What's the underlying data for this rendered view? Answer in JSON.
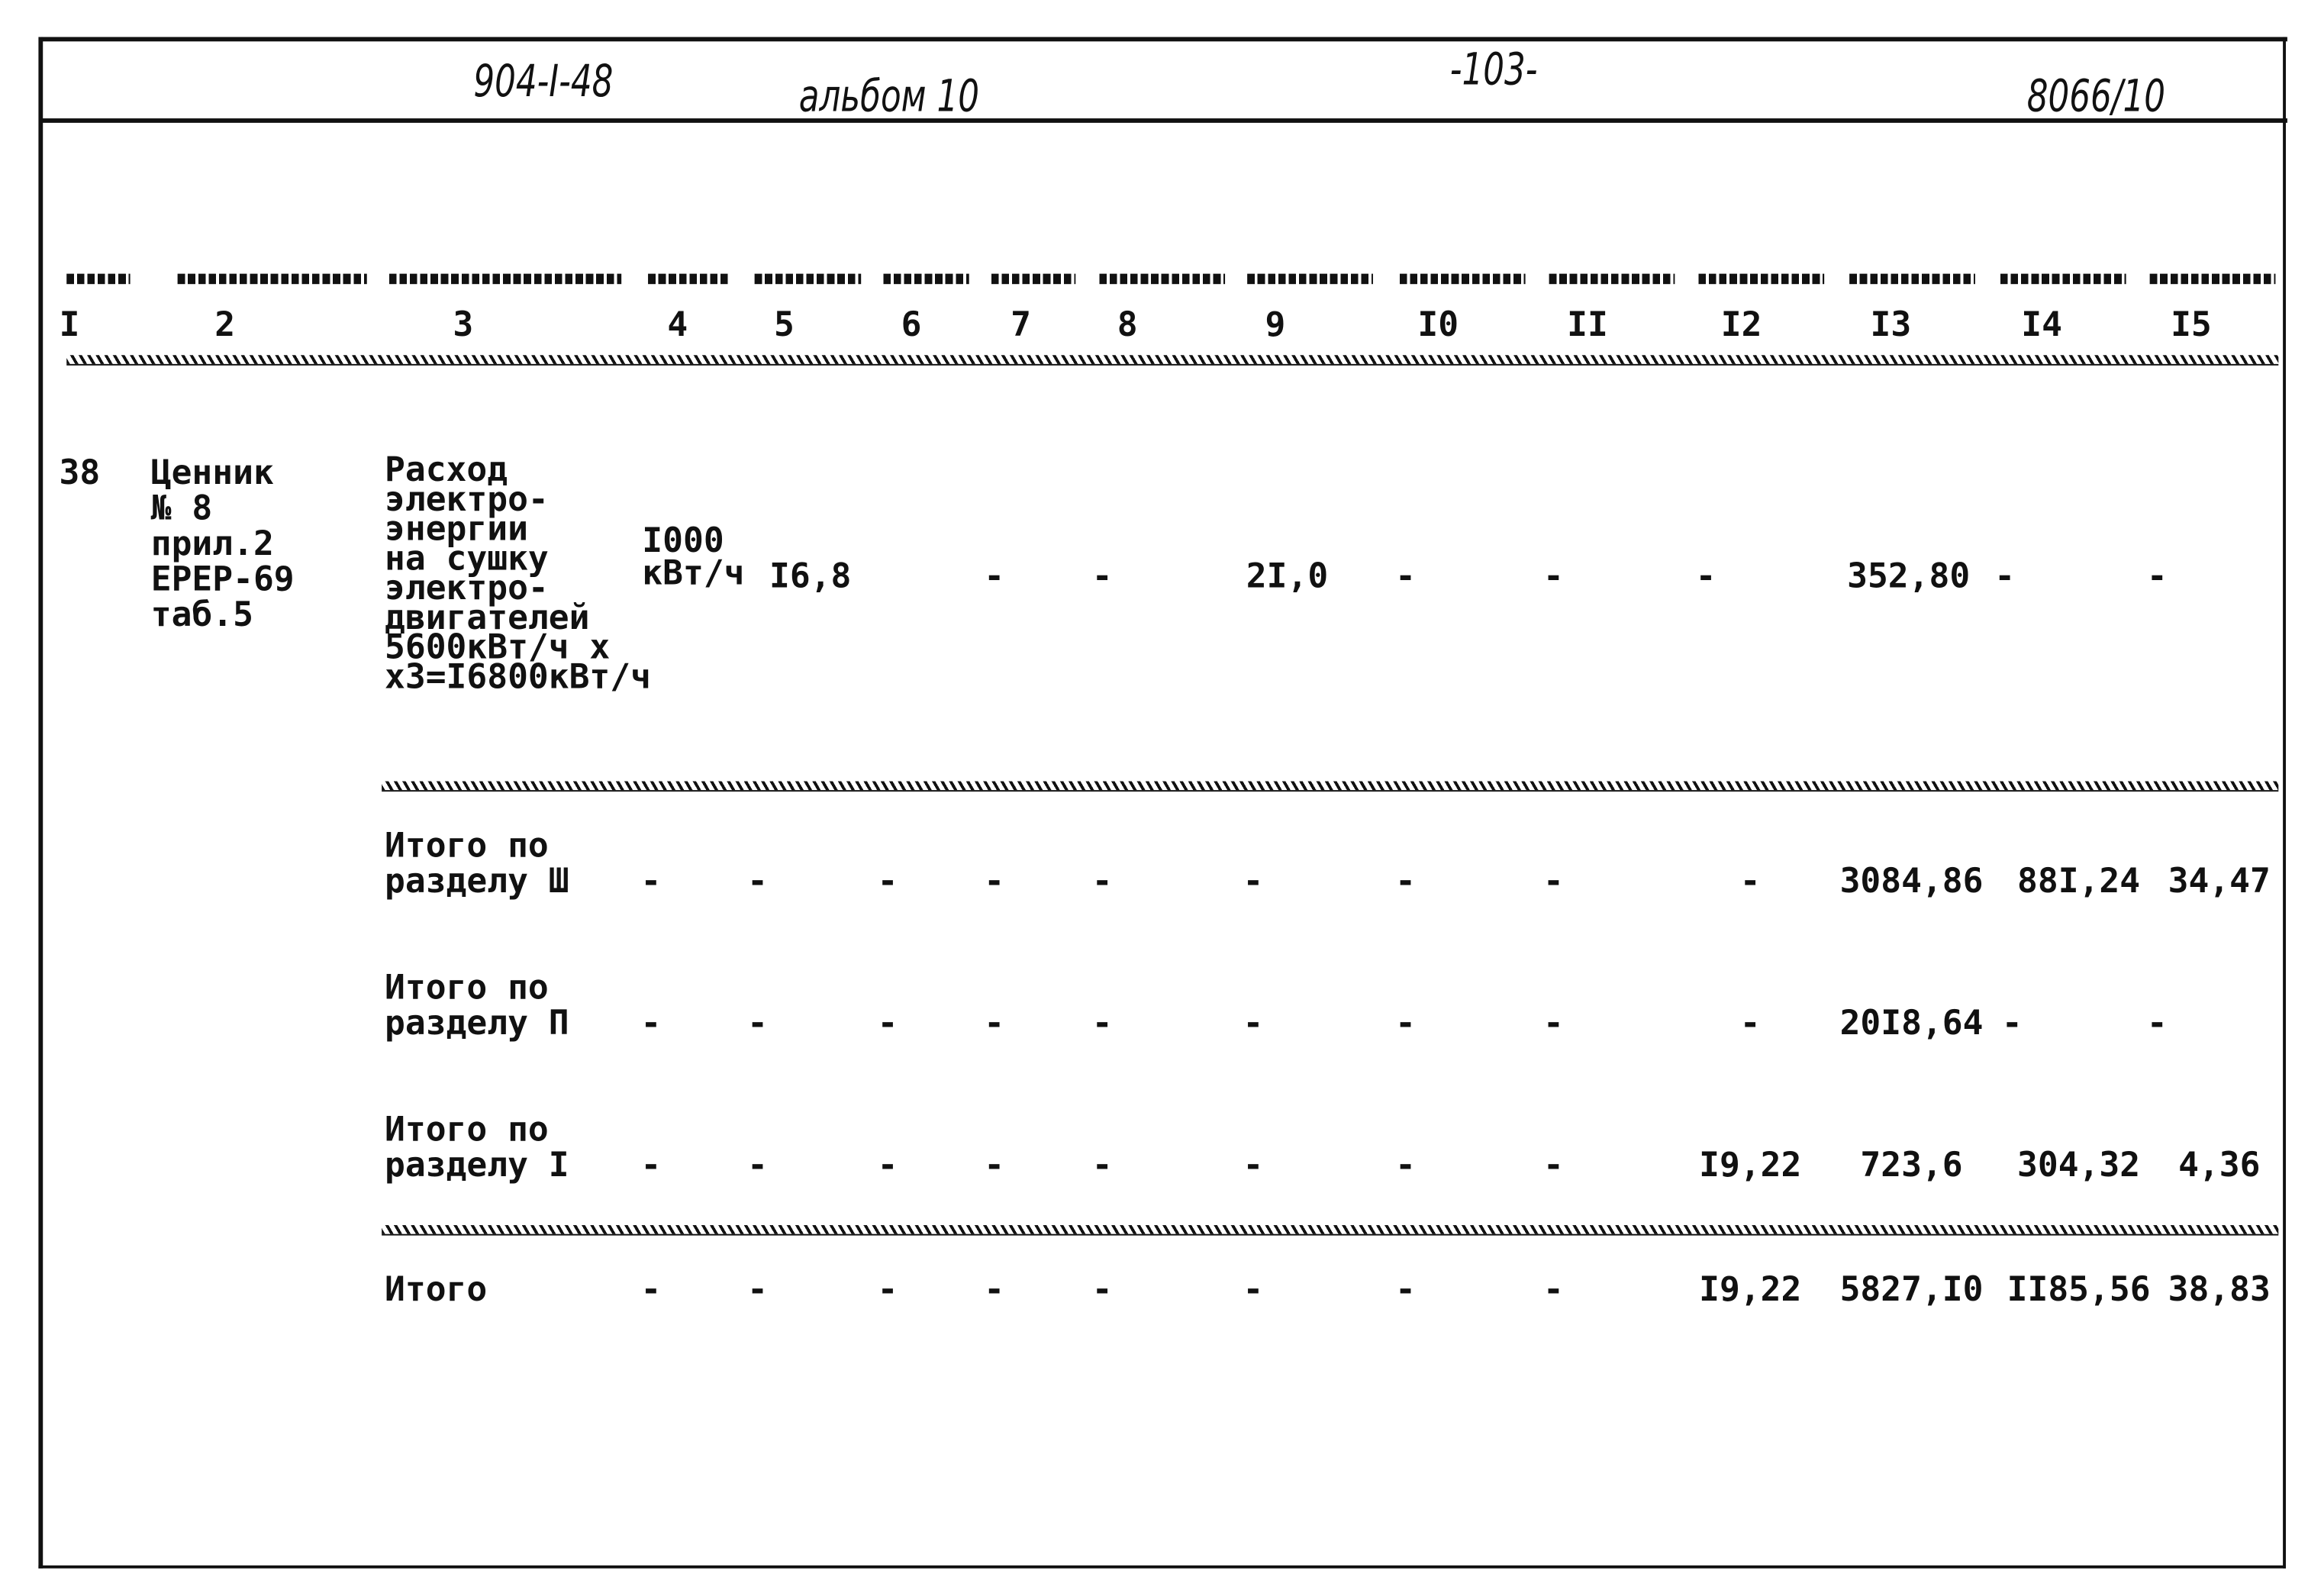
{
  "header": {
    "project_code": "904-I-48",
    "album": "альбом 10",
    "page_number": "-103-",
    "sheet_ref": "8066/10"
  },
  "columns": [
    "I",
    "2",
    "3",
    "4",
    "5",
    "6",
    "7",
    "8",
    "9",
    "I0",
    "II",
    "I2",
    "I3",
    "I4",
    "I5"
  ],
  "row": {
    "number": "38",
    "basis": "Ценник\n№ 8\nприл.2\nЕРЕР-69\nтаб.5",
    "description": "Расход\nэлектро-\nэнергии\nна сушку\nэлектро-\nдвигателей\n5600кВт/ч x\nx3=I6800кВт/ч",
    "unit": "I000\nкВт/ч",
    "quantity": "I6,8",
    "values": [
      "-",
      "-",
      "2I,0",
      "-",
      "-",
      "-",
      "352,80",
      "-",
      "-"
    ]
  },
  "totals": [
    {
      "label": "Итого по\nразделу Ш",
      "values": [
        "-",
        "-",
        "-",
        "-",
        "-",
        "-",
        "-",
        "-",
        "-",
        "3084,86",
        "88I,24",
        "34,47"
      ]
    },
    {
      "label": "Итого по\nразделу П",
      "values": [
        "-",
        "-",
        "-",
        "-",
        "-",
        "-",
        "-",
        "-",
        "-",
        "20I8,64",
        "-",
        "-"
      ]
    },
    {
      "label": "Итого по\nразделу I",
      "values": [
        "-",
        "-",
        "-",
        "-",
        "-",
        "-",
        "-",
        "-",
        "I9,22",
        "723,6",
        "304,32",
        "4,36"
      ]
    },
    {
      "label": "Итого",
      "values": [
        "-",
        "-",
        "-",
        "-",
        "-",
        "-",
        "-",
        "-",
        "I9,22",
        "5827,I0",
        "II85,56",
        "38,83"
      ]
    }
  ]
}
